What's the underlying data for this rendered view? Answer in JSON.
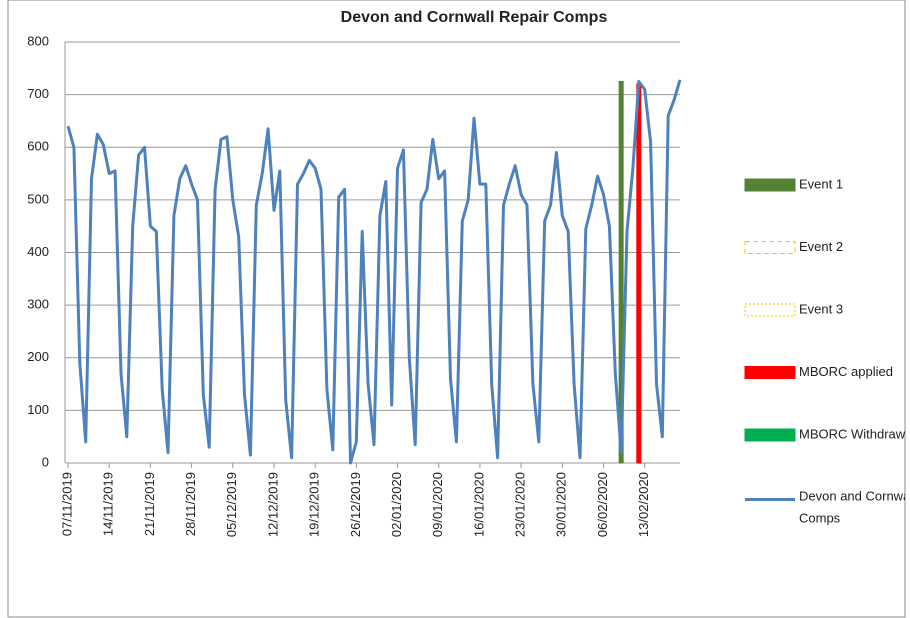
{
  "chart_data": {
    "type": "line",
    "title": "Devon and Cornwall Repair Comps",
    "categories": [
      "07/11/2019",
      null,
      null,
      null,
      null,
      null,
      null,
      "14/11/2019",
      null,
      null,
      null,
      null,
      null,
      null,
      "21/11/2019",
      null,
      null,
      null,
      null,
      null,
      null,
      "28/11/2019",
      null,
      null,
      null,
      null,
      null,
      null,
      "05/12/2019",
      null,
      null,
      null,
      null,
      null,
      null,
      "12/12/2019",
      null,
      null,
      null,
      null,
      null,
      null,
      "19/12/2019",
      null,
      null,
      null,
      null,
      null,
      null,
      "26/12/2019",
      null,
      null,
      null,
      null,
      null,
      null,
      "02/01/2020",
      null,
      null,
      null,
      null,
      null,
      null,
      "09/01/2020",
      null,
      null,
      null,
      null,
      null,
      null,
      "16/01/2020",
      null,
      null,
      null,
      null,
      null,
      null,
      "23/01/2020",
      null,
      null,
      null,
      null,
      null,
      null,
      "30/01/2020",
      null,
      null,
      null,
      null,
      null,
      null,
      "06/02/2020",
      null,
      null,
      null,
      null,
      null,
      null,
      "13/02/2020",
      null,
      null,
      null,
      null,
      null,
      null
    ],
    "series": [
      {
        "name": "Event 1",
        "type": "bar",
        "color": "#548235",
        "outline": "solid",
        "filled": true,
        "values": [
          null,
          null,
          null,
          null,
          null,
          null,
          null,
          null,
          null,
          null,
          null,
          null,
          null,
          null,
          null,
          null,
          null,
          null,
          null,
          null,
          null,
          null,
          null,
          null,
          null,
          null,
          null,
          null,
          null,
          null,
          null,
          null,
          null,
          null,
          null,
          null,
          null,
          null,
          null,
          null,
          null,
          null,
          null,
          null,
          null,
          null,
          null,
          null,
          null,
          null,
          null,
          null,
          null,
          null,
          null,
          null,
          null,
          null,
          null,
          null,
          null,
          null,
          null,
          null,
          null,
          null,
          null,
          null,
          null,
          null,
          null,
          null,
          null,
          null,
          null,
          null,
          null,
          null,
          null,
          null,
          null,
          null,
          null,
          null,
          null,
          null,
          null,
          null,
          null,
          null,
          null,
          null,
          null,
          null,
          725,
          null,
          null,
          null,
          null,
          null,
          null,
          null,
          null,
          null,
          null
        ]
      },
      {
        "name": "Event 2",
        "type": "bar",
        "color": "#ffc000",
        "outline": "dashed",
        "filled": false,
        "values": [
          null,
          null,
          null,
          null,
          null,
          null,
          null,
          null,
          null,
          null,
          null,
          null,
          null,
          null,
          null,
          null,
          null,
          null,
          null,
          null,
          null,
          null,
          null,
          null,
          null,
          null,
          null,
          null,
          null,
          null,
          null,
          null,
          null,
          null,
          null,
          null,
          null,
          null,
          null,
          null,
          null,
          null,
          null,
          null,
          null,
          null,
          null,
          null,
          null,
          null,
          null,
          null,
          null,
          null,
          null,
          null,
          null,
          null,
          null,
          null,
          null,
          null,
          null,
          null,
          null,
          null,
          null,
          null,
          null,
          null,
          null,
          null,
          null,
          null,
          null,
          null,
          null,
          null,
          null,
          null,
          null,
          null,
          null,
          null,
          null,
          null,
          null,
          null,
          null,
          null,
          null,
          null,
          null,
          null,
          null,
          null,
          null,
          null,
          null,
          null,
          null,
          null,
          null,
          null,
          null
        ]
      },
      {
        "name": "Event 3",
        "type": "bar",
        "color": "#ffc000",
        "outline": "dotted",
        "filled": false,
        "values": [
          null,
          null,
          null,
          null,
          null,
          null,
          null,
          null,
          null,
          null,
          null,
          null,
          null,
          null,
          null,
          null,
          null,
          null,
          null,
          null,
          null,
          null,
          null,
          null,
          null,
          null,
          null,
          null,
          null,
          null,
          null,
          null,
          null,
          null,
          null,
          null,
          null,
          null,
          null,
          null,
          null,
          null,
          null,
          null,
          null,
          null,
          null,
          null,
          null,
          null,
          null,
          null,
          null,
          null,
          null,
          null,
          null,
          null,
          null,
          null,
          null,
          null,
          null,
          null,
          null,
          null,
          null,
          null,
          null,
          null,
          null,
          null,
          null,
          null,
          null,
          null,
          null,
          null,
          null,
          null,
          null,
          null,
          null,
          null,
          null,
          null,
          null,
          null,
          null,
          null,
          null,
          null,
          null,
          null,
          null,
          null,
          null,
          null,
          null,
          null,
          null,
          null,
          null,
          null,
          null
        ]
      },
      {
        "name": "MBORC applied",
        "type": "bar",
        "color": "#ff0000",
        "outline": "solid",
        "filled": true,
        "values": [
          null,
          null,
          null,
          null,
          null,
          null,
          null,
          null,
          null,
          null,
          null,
          null,
          null,
          null,
          null,
          null,
          null,
          null,
          null,
          null,
          null,
          null,
          null,
          null,
          null,
          null,
          null,
          null,
          null,
          null,
          null,
          null,
          null,
          null,
          null,
          null,
          null,
          null,
          null,
          null,
          null,
          null,
          null,
          null,
          null,
          null,
          null,
          null,
          null,
          null,
          null,
          null,
          null,
          null,
          null,
          null,
          null,
          null,
          null,
          null,
          null,
          null,
          null,
          null,
          null,
          null,
          null,
          null,
          null,
          null,
          null,
          null,
          null,
          null,
          null,
          null,
          null,
          null,
          null,
          null,
          null,
          null,
          null,
          null,
          null,
          null,
          null,
          null,
          null,
          null,
          null,
          null,
          null,
          null,
          null,
          null,
          null,
          720,
          null,
          null,
          null,
          null,
          null,
          null,
          null
        ]
      },
      {
        "name": "MBORC Withdrawn",
        "type": "bar",
        "color": "#00b050",
        "outline": "solid",
        "filled": true,
        "values": [
          null,
          null,
          null,
          null,
          null,
          null,
          null,
          null,
          null,
          null,
          null,
          null,
          null,
          null,
          null,
          null,
          null,
          null,
          null,
          null,
          null,
          null,
          null,
          null,
          null,
          null,
          null,
          null,
          null,
          null,
          null,
          null,
          null,
          null,
          null,
          null,
          null,
          null,
          null,
          null,
          null,
          null,
          null,
          null,
          null,
          null,
          null,
          null,
          null,
          null,
          null,
          null,
          null,
          null,
          null,
          null,
          null,
          null,
          null,
          null,
          null,
          null,
          null,
          null,
          null,
          null,
          null,
          null,
          null,
          null,
          null,
          null,
          null,
          null,
          null,
          null,
          null,
          null,
          null,
          null,
          null,
          null,
          null,
          null,
          null,
          null,
          null,
          null,
          null,
          null,
          null,
          null,
          null,
          null,
          null,
          null,
          null,
          null,
          null,
          null,
          null,
          null,
          null,
          null,
          null
        ]
      },
      {
        "name": "Devon and Cornwall Repair Comps",
        "type": "line",
        "color": "#4f81bd",
        "values": [
          640,
          600,
          190,
          40,
          540,
          625,
          605,
          550,
          555,
          170,
          50,
          450,
          585,
          600,
          450,
          440,
          140,
          20,
          470,
          540,
          565,
          530,
          500,
          130,
          30,
          520,
          615,
          620,
          500,
          430,
          130,
          15,
          490,
          550,
          635,
          480,
          555,
          120,
          10,
          530,
          550,
          575,
          560,
          520,
          140,
          25,
          505,
          520,
          0,
          40,
          440,
          150,
          35,
          470,
          535,
          110,
          560,
          595,
          200,
          35,
          495,
          520,
          615,
          540,
          555,
          160,
          40,
          460,
          500,
          655,
          530,
          530,
          150,
          10,
          490,
          530,
          565,
          510,
          490,
          150,
          40,
          460,
          490,
          590,
          470,
          440,
          150,
          10,
          445,
          490,
          545,
          510,
          450,
          170,
          20,
          440,
          560,
          725,
          710,
          610,
          150,
          50,
          660,
          690,
          728
        ]
      }
    ],
    "ylim": [
      0,
      800
    ],
    "yticks": [
      0,
      100,
      200,
      300,
      400,
      500,
      600,
      700,
      800
    ],
    "grid": true,
    "legend": "right"
  }
}
